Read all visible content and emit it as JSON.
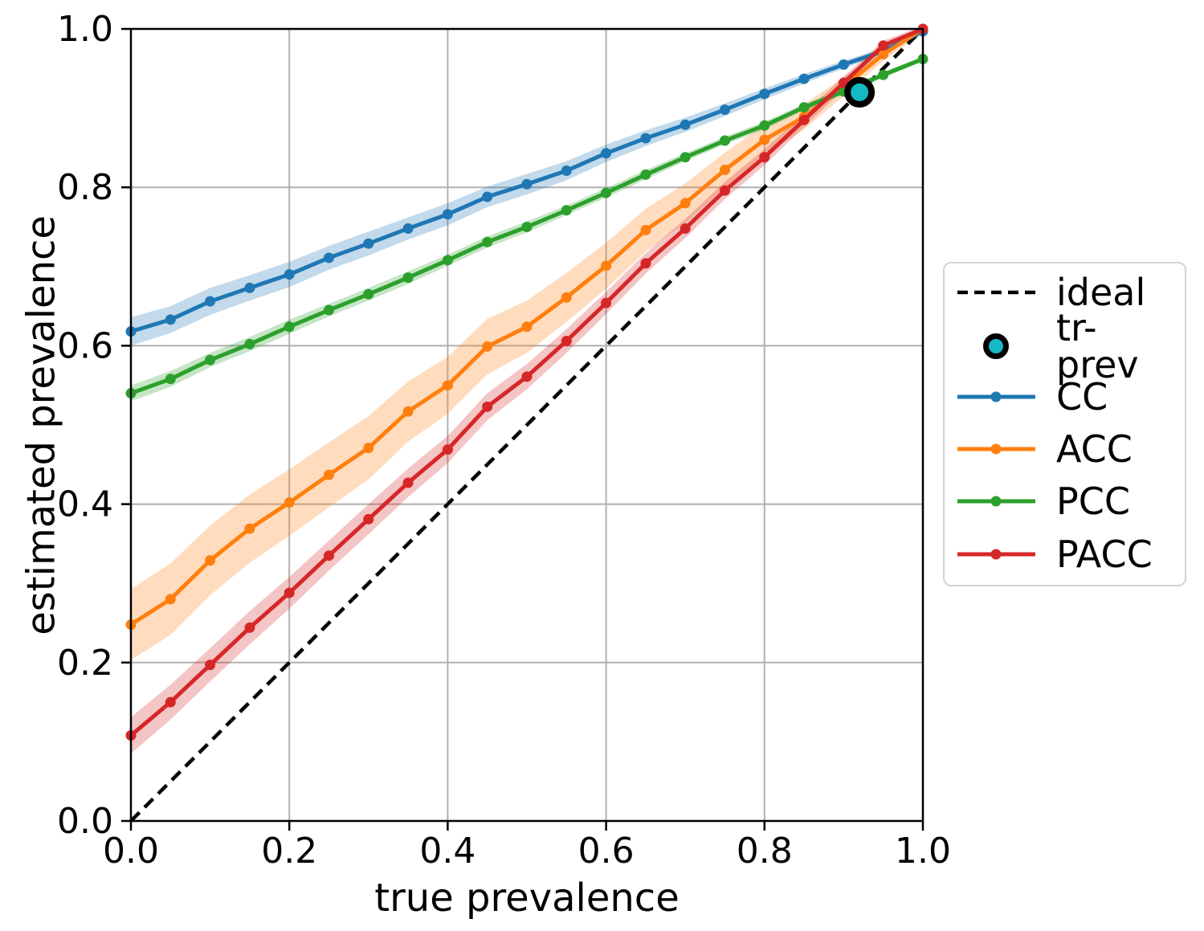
{
  "chart_data": {
    "type": "line",
    "title": "",
    "xlabel": "true prevalence",
    "ylabel": "estimated prevalence",
    "xlim": [
      0.0,
      1.0
    ],
    "ylim": [
      0.0,
      1.0
    ],
    "grid": true,
    "grid_color": "#b0b0b0",
    "x_tick_labels": [
      "0.0",
      "0.2",
      "0.4",
      "0.6",
      "0.8",
      "1.0"
    ],
    "y_tick_labels": [
      "0.0",
      "0.2",
      "0.4",
      "0.6",
      "0.8",
      "1.0"
    ],
    "x": [
      0.0,
      0.05,
      0.1,
      0.15,
      0.2,
      0.25,
      0.3,
      0.35,
      0.4,
      0.45,
      0.5,
      0.55,
      0.6,
      0.65,
      0.7,
      0.75,
      0.8,
      0.85,
      0.9,
      0.95,
      1.0
    ],
    "series": [
      {
        "name": "CC",
        "color": "#1f77b4",
        "values": [
          0.618,
          0.633,
          0.656,
          0.673,
          0.69,
          0.711,
          0.729,
          0.748,
          0.766,
          0.788,
          0.804,
          0.821,
          0.843,
          0.862,
          0.879,
          0.898,
          0.918,
          0.937,
          0.955,
          0.972,
          0.997
        ],
        "band_halfwidth": [
          0.018,
          0.017,
          0.017,
          0.016,
          0.016,
          0.015,
          0.015,
          0.014,
          0.014,
          0.013,
          0.013,
          0.012,
          0.011,
          0.01,
          0.009,
          0.008,
          0.007,
          0.006,
          0.005,
          0.004,
          0.003
        ]
      },
      {
        "name": "ACC",
        "color": "#ff7f0e",
        "values": [
          0.248,
          0.28,
          0.329,
          0.369,
          0.402,
          0.437,
          0.471,
          0.517,
          0.55,
          0.599,
          0.624,
          0.661,
          0.701,
          0.746,
          0.78,
          0.822,
          0.86,
          0.889,
          0.927,
          0.968,
          1.0
        ],
        "band_halfwidth": [
          0.045,
          0.045,
          0.044,
          0.043,
          0.042,
          0.041,
          0.04,
          0.038,
          0.036,
          0.035,
          0.033,
          0.031,
          0.029,
          0.027,
          0.025,
          0.022,
          0.019,
          0.016,
          0.012,
          0.008,
          0.005
        ]
      },
      {
        "name": "PCC",
        "color": "#2ca02c",
        "values": [
          0.54,
          0.558,
          0.582,
          0.602,
          0.624,
          0.645,
          0.665,
          0.686,
          0.708,
          0.731,
          0.75,
          0.771,
          0.793,
          0.816,
          0.838,
          0.859,
          0.878,
          0.901,
          0.921,
          0.942,
          0.962
        ],
        "band_halfwidth": [
          0.01,
          0.01,
          0.009,
          0.009,
          0.009,
          0.008,
          0.008,
          0.008,
          0.007,
          0.007,
          0.007,
          0.006,
          0.006,
          0.006,
          0.005,
          0.005,
          0.005,
          0.004,
          0.004,
          0.004,
          0.003
        ]
      },
      {
        "name": "PACC",
        "color": "#d62728",
        "values": [
          0.108,
          0.15,
          0.197,
          0.244,
          0.288,
          0.335,
          0.381,
          0.427,
          0.469,
          0.523,
          0.561,
          0.606,
          0.654,
          0.704,
          0.748,
          0.796,
          0.838,
          0.885,
          0.932,
          0.979,
          1.0
        ],
        "band_halfwidth": [
          0.023,
          0.022,
          0.021,
          0.021,
          0.02,
          0.019,
          0.019,
          0.018,
          0.017,
          0.017,
          0.016,
          0.015,
          0.014,
          0.013,
          0.012,
          0.011,
          0.01,
          0.009,
          0.008,
          0.006,
          0.004
        ]
      }
    ],
    "ideal_line": {
      "label": "ideal",
      "x": [
        0.0,
        1.0
      ],
      "y": [
        0.0,
        1.0
      ],
      "color": "#000000",
      "style": "dashed"
    },
    "tr_prev_marker": {
      "label": "tr-prev",
      "x": 0.92,
      "y": 0.92,
      "fill": "#14b9c3",
      "edge": "#000000"
    },
    "legend": {
      "position": "center right",
      "items": [
        {
          "label": "ideal",
          "swatch": "dashed-line",
          "color": "#000000"
        },
        {
          "label": "tr-prev",
          "swatch": "ring-circle",
          "color": "#14b9c3"
        },
        {
          "label": "CC",
          "swatch": "line-dot",
          "color": "#1f77b4"
        },
        {
          "label": "ACC",
          "swatch": "line-dot",
          "color": "#ff7f0e"
        },
        {
          "label": "PCC",
          "swatch": "line-dot",
          "color": "#2ca02c"
        },
        {
          "label": "PACC",
          "swatch": "line-dot",
          "color": "#d62728"
        }
      ]
    }
  }
}
